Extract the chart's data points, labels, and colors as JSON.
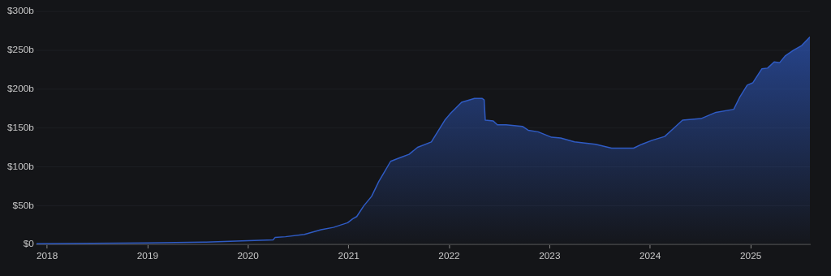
{
  "chart_data": {
    "type": "area",
    "x": [
      "2017-11-23",
      "2019-01-01",
      "2019-07-24",
      "2020-01-01",
      "2020-04-01",
      "2020-04-08",
      "2020-05-16",
      "2020-07-24",
      "2020-09-22",
      "2020-11-06",
      "2020-12-28",
      "2021-01-15",
      "2021-01-30",
      "2021-02-25",
      "2021-03-25",
      "2021-04-20",
      "2021-05-10",
      "2021-06-02",
      "2021-07-08",
      "2021-08-08",
      "2021-09-08",
      "2021-10-28",
      "2021-12-16",
      "2022-01-04",
      "2022-02-15",
      "2022-04-03",
      "2022-05-01",
      "2022-05-08",
      "2022-05-12",
      "2022-06-10",
      "2022-06-25",
      "2022-07-27",
      "2022-09-24",
      "2022-10-15",
      "2022-11-20",
      "2023-01-08",
      "2023-02-10",
      "2023-04-01",
      "2023-06-17",
      "2023-08-14",
      "2023-11-02",
      "2023-12-02",
      "2024-01-08",
      "2024-02-23",
      "2024-03-22",
      "2024-04-28",
      "2024-07-04",
      "2024-08-27",
      "2024-10-31",
      "2024-11-21",
      "2024-12-19",
      "2025-01-08",
      "2025-02-10",
      "2025-03-03",
      "2025-03-27",
      "2025-04-16",
      "2025-05-07",
      "2025-06-05",
      "2025-07-05",
      "2025-08-04"
    ],
    "series": [
      {
        "color": "#2f5bc4",
        "values": [
          1,
          2,
          3,
          5,
          6,
          9,
          10,
          13,
          19,
          22,
          28,
          33,
          36,
          50,
          62,
          81,
          93,
          107,
          112,
          116,
          125,
          132,
          160,
          168,
          183,
          188,
          188,
          186,
          160,
          159,
          154,
          154,
          152,
          147,
          145,
          138,
          137,
          132,
          129,
          124,
          124,
          129,
          134,
          139,
          148,
          160,
          162,
          170,
          174,
          189,
          205,
          208,
          226,
          227,
          235,
          234,
          243,
          250,
          256,
          267
        ]
      }
    ],
    "xlim": [
      "2017-11-23",
      "2025-08-04"
    ],
    "xticks": [
      "2018",
      "2019",
      "2020",
      "2021",
      "2022",
      "2023",
      "2024",
      "2025"
    ],
    "ylim": [
      0,
      300
    ],
    "yticks": [
      {
        "value": 0,
        "label": "$0"
      },
      {
        "value": 50,
        "label": "$50b"
      },
      {
        "value": 100,
        "label": "$100b"
      },
      {
        "value": 150,
        "label": "$150b"
      },
      {
        "value": 200,
        "label": "$200b"
      },
      {
        "value": 250,
        "label": "$250b"
      },
      {
        "value": 300,
        "label": "$300b"
      }
    ],
    "grid": "y",
    "legend": false,
    "marker": "none",
    "line_style": "solid"
  }
}
